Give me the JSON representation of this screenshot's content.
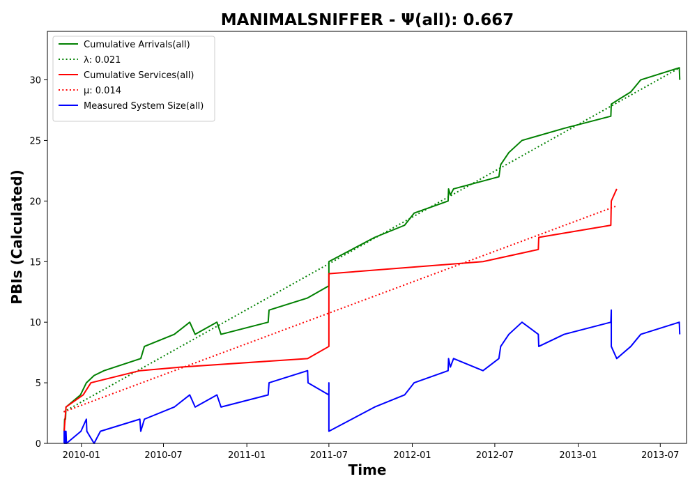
{
  "chart_data": {
    "type": "line",
    "title": "MANIMALSNIFFER -  Ψ(all): 0.667",
    "xlabel": "Time",
    "ylabel": "PBIs (Calculated)",
    "xlim": [
      "2009-10-18",
      "2013-08-28"
    ],
    "ylim": [
      0,
      34
    ],
    "x_ticks": [
      {
        "date": "2010-01-01",
        "label": "2010-01"
      },
      {
        "date": "2010-07-01",
        "label": "2010-07"
      },
      {
        "date": "2011-01-01",
        "label": "2011-01"
      },
      {
        "date": "2011-07-01",
        "label": "2011-07"
      },
      {
        "date": "2012-01-01",
        "label": "2012-01"
      },
      {
        "date": "2012-07-01",
        "label": "2012-07"
      },
      {
        "date": "2013-01-01",
        "label": "2013-01"
      },
      {
        "date": "2013-07-01",
        "label": "2013-07"
      }
    ],
    "y_ticks": [
      0,
      5,
      10,
      15,
      20,
      25,
      30
    ],
    "grid": false,
    "legend_position": "top-left",
    "series": [
      {
        "name": "Cumulative Arrivals(all)",
        "color": "#008000",
        "style": "solid",
        "points": [
          [
            "2009-11-24",
            1
          ],
          [
            "2009-11-25",
            2
          ],
          [
            "2009-11-27",
            2
          ],
          [
            "2009-11-28",
            3
          ],
          [
            "2009-12-30",
            4
          ],
          [
            "2010-01-12",
            5
          ],
          [
            "2010-01-29",
            5.6
          ],
          [
            "2010-02-20",
            6
          ],
          [
            "2010-05-12",
            7
          ],
          [
            "2010-05-20",
            8
          ],
          [
            "2010-07-25",
            9
          ],
          [
            "2010-08-28",
            10
          ],
          [
            "2010-09-09",
            9
          ],
          [
            "2010-10-27",
            10
          ],
          [
            "2010-11-05",
            9
          ],
          [
            "2011-02-17",
            10
          ],
          [
            "2011-02-19",
            11
          ],
          [
            "2011-05-15",
            12
          ],
          [
            "2011-07-01",
            13
          ],
          [
            "2011-07-01",
            15
          ],
          [
            "2011-10-10",
            17
          ],
          [
            "2011-12-15",
            18
          ],
          [
            "2012-01-05",
            19
          ],
          [
            "2012-03-20",
            20
          ],
          [
            "2012-03-21",
            21
          ],
          [
            "2012-03-25",
            20.5
          ],
          [
            "2012-04-01",
            21
          ],
          [
            "2012-07-10",
            22
          ],
          [
            "2012-07-14",
            23
          ],
          [
            "2012-08-01",
            24
          ],
          [
            "2012-08-30",
            25
          ],
          [
            "2012-12-01",
            26
          ],
          [
            "2013-03-14",
            27
          ],
          [
            "2013-03-15",
            28
          ],
          [
            "2013-04-27",
            29
          ],
          [
            "2013-05-19",
            30
          ],
          [
            "2013-08-12",
            31
          ],
          [
            "2013-08-13",
            30
          ]
        ]
      },
      {
        "name": "λ: 0.021",
        "color": "#008000",
        "style": "dotted",
        "points": [
          [
            "2009-11-23",
            2.6
          ],
          [
            "2013-08-13",
            31
          ]
        ]
      },
      {
        "name": "Cumulative Services(all)",
        "color": "#ff0000",
        "style": "solid",
        "points": [
          [
            "2009-11-24",
            1
          ],
          [
            "2009-11-28",
            3
          ],
          [
            "2010-01-05",
            4
          ],
          [
            "2010-01-22",
            5
          ],
          [
            "2010-05-10",
            6
          ],
          [
            "2010-08-10",
            6.3
          ],
          [
            "2011-05-15",
            7
          ],
          [
            "2011-07-01",
            8
          ],
          [
            "2011-07-01",
            14
          ],
          [
            "2012-06-05",
            15
          ],
          [
            "2012-10-05",
            16
          ],
          [
            "2012-10-06",
            17
          ],
          [
            "2013-03-14",
            18
          ],
          [
            "2013-03-15",
            20
          ],
          [
            "2013-03-27",
            21
          ]
        ]
      },
      {
        "name": "μ: 0.014",
        "color": "#ff0000",
        "style": "dotted",
        "points": [
          [
            "2009-11-23",
            2.6
          ],
          [
            "2013-03-27",
            19.6
          ]
        ]
      },
      {
        "name": "Measured System Size(all)",
        "color": "#0000ff",
        "style": "solid",
        "points": [
          [
            "2009-11-24",
            0
          ],
          [
            "2009-11-24",
            1
          ],
          [
            "2009-11-25",
            0
          ],
          [
            "2009-11-26",
            1
          ],
          [
            "2009-11-27",
            0
          ],
          [
            "2009-11-28",
            1
          ],
          [
            "2009-11-29",
            0
          ],
          [
            "2009-12-31",
            1
          ],
          [
            "2010-01-12",
            2
          ],
          [
            "2010-01-13",
            1
          ],
          [
            "2010-01-29",
            0
          ],
          [
            "2010-02-12",
            1
          ],
          [
            "2010-05-10",
            2
          ],
          [
            "2010-05-12",
            1
          ],
          [
            "2010-05-20",
            2
          ],
          [
            "2010-07-25",
            3
          ],
          [
            "2010-08-28",
            4
          ],
          [
            "2010-09-09",
            3
          ],
          [
            "2010-10-27",
            4
          ],
          [
            "2010-11-05",
            3
          ],
          [
            "2011-02-17",
            4
          ],
          [
            "2011-02-19",
            5
          ],
          [
            "2011-05-15",
            6
          ],
          [
            "2011-05-16",
            5
          ],
          [
            "2011-07-01",
            4
          ],
          [
            "2011-07-01",
            5
          ],
          [
            "2011-07-01",
            1
          ],
          [
            "2011-10-10",
            3
          ],
          [
            "2011-12-15",
            4
          ],
          [
            "2012-01-05",
            5
          ],
          [
            "2012-03-20",
            6
          ],
          [
            "2012-03-21",
            7
          ],
          [
            "2012-03-25",
            6.3
          ],
          [
            "2012-04-01",
            7
          ],
          [
            "2012-06-05",
            6
          ],
          [
            "2012-07-10",
            7
          ],
          [
            "2012-07-14",
            8
          ],
          [
            "2012-08-01",
            9
          ],
          [
            "2012-08-30",
            10
          ],
          [
            "2012-10-05",
            9
          ],
          [
            "2012-10-06",
            8
          ],
          [
            "2012-12-01",
            9
          ],
          [
            "2013-03-14",
            10
          ],
          [
            "2013-03-15",
            11
          ],
          [
            "2013-03-15",
            8
          ],
          [
            "2013-03-27",
            7
          ],
          [
            "2013-04-27",
            8
          ],
          [
            "2013-05-19",
            9
          ],
          [
            "2013-08-12",
            10
          ],
          [
            "2013-08-13",
            9
          ]
        ]
      }
    ]
  }
}
